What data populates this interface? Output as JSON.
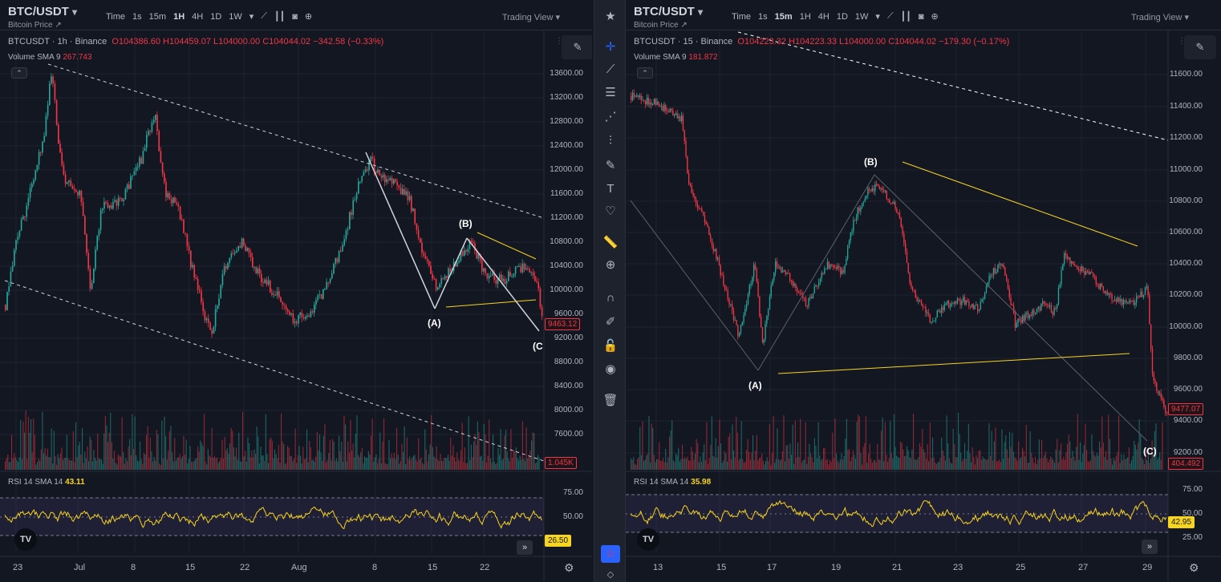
{
  "left": {
    "symbol": "BTC/USDT",
    "subtitle": "Bitcoin Price ↗",
    "timeframes": [
      "Time",
      "1s",
      "15m",
      "1H",
      "4H",
      "1D",
      "1W"
    ],
    "active_tf": "1H",
    "trading_view": "Trading View",
    "legend_symbol": "BTCUSDT · 1h · Binance",
    "legend_ohlc": "O104386.60  H104459.07  L104000.00  C104044.02  −342.58 (−0.33%)",
    "volume_label": "Volume SMA 9",
    "volume_value": "267.743",
    "rsi_label": "RSI 14 SMA 14",
    "rsi_value": "43.11",
    "price_ticks": [
      "13600.00",
      "13200.00",
      "12800.00",
      "12400.00",
      "12000.00",
      "11600.00",
      "11200.00",
      "10800.00",
      "10400.00",
      "10000.00",
      "9600.00",
      "9200.00",
      "8800.00",
      "8400.00",
      "8000.00",
      "7600.00"
    ],
    "price_tag": "9463.12",
    "volume_tag": "1.045K",
    "rsi_ticks": [
      "75.00",
      "50.00"
    ],
    "rsi_tag": "26.50",
    "x_labels": [
      "23",
      "Jul",
      "8",
      "15",
      "22",
      "Aug",
      "8",
      "15",
      "22"
    ],
    "waves": [
      "(A)",
      "(B)",
      "(C"
    ]
  },
  "right": {
    "symbol": "BTC/USDT",
    "subtitle": "Bitcoin Price ↗",
    "timeframes": [
      "Time",
      "1s",
      "15m",
      "1H",
      "4H",
      "1D",
      "1W"
    ],
    "active_tf": "15m",
    "trading_view": "Trading View",
    "legend_symbol": "BTCUSDT · 15 · Binance",
    "legend_ohlc": "O104223.32  H104223.33  L104000.00  C104044.02  −179.30 (−0.17%)",
    "volume_label": "Volume SMA 9",
    "volume_value": "181.872",
    "rsi_label": "RSI 14 SMA 14",
    "rsi_value": "35.98",
    "price_ticks": [
      "11600.00",
      "11400.00",
      "11200.00",
      "11000.00",
      "10800.00",
      "10600.00",
      "10400.00",
      "10200.00",
      "10000.00",
      "9800.00",
      "9600.00",
      "9400.00",
      "9200.00"
    ],
    "price_tag": "9477.07",
    "volume_tag": "404.492",
    "rsi_ticks": [
      "75.00",
      "50.00",
      "25.00"
    ],
    "rsi_tag": "42.95",
    "x_labels": [
      "13",
      "15",
      "17",
      "19",
      "21",
      "23",
      "25",
      "27",
      "29"
    ],
    "waves": [
      "(A)",
      "(B)",
      "(C)"
    ]
  },
  "toolbar": {
    "icons": [
      "star-icon",
      "crosshair-icon",
      "trendline-icon",
      "horizontal-lines-icon",
      "pattern-icon",
      "prediction-icon",
      "brush-icon",
      "text-icon",
      "heart-icon",
      "ruler-icon",
      "zoom-in-icon",
      "magnet-icon",
      "lock-drawing-icon",
      "unlock-icon",
      "eye-icon",
      "trash-icon",
      "favorites-icon"
    ]
  },
  "colors": {
    "background": "#131722",
    "up": "#26a69a",
    "down": "#f23645",
    "rsi": "#f7d41f",
    "trend_yellow": "#f7d41f",
    "wave_line": "#d1d4dc"
  }
}
